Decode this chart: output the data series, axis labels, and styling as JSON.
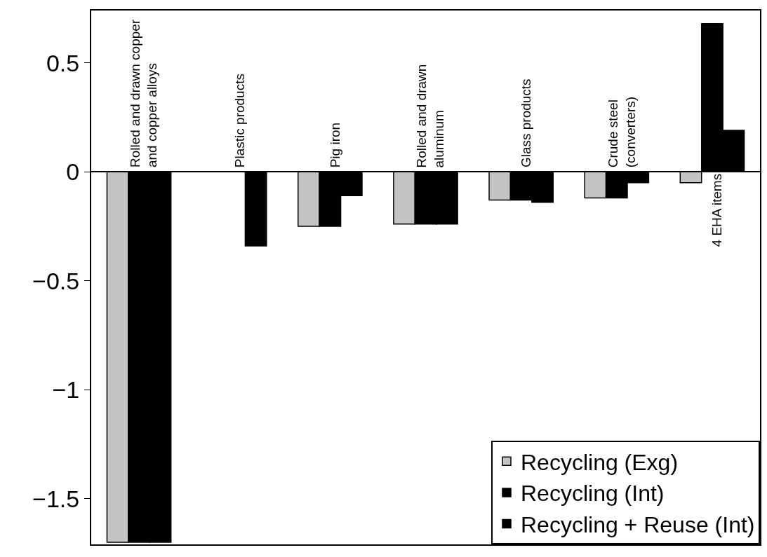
{
  "chart_data": {
    "type": "bar",
    "categories": [
      "Rolled and drawn copper\nand copper alloys",
      "Plastic products",
      "Pig iron",
      "Rolled and drawn\naluminum",
      "Glass products",
      "Crude steel\n(converters)",
      "4 EHA items"
    ],
    "series": [
      {
        "name": "Recycling (Exg)",
        "color": "#c4c4c4",
        "values": [
          -1.7,
          null,
          -0.25,
          -0.24,
          -0.13,
          -0.12,
          -0.05
        ]
      },
      {
        "name": "Recycling (Int)",
        "color": "#000000",
        "values": [
          -1.7,
          null,
          -0.25,
          -0.24,
          -0.13,
          -0.12,
          0.68
        ]
      },
      {
        "name": "Recycling + Reuse (Int)",
        "color": "#000000",
        "values": [
          -1.7,
          -0.34,
          -0.11,
          -0.24,
          -0.14,
          -0.05,
          0.19
        ]
      }
    ],
    "ylim": [
      -1.71,
      0.74
    ],
    "yticks": [
      -1.5,
      -1,
      -0.5,
      0,
      0.5
    ],
    "tick_labels": "y",
    "legend": "bottom right"
  }
}
